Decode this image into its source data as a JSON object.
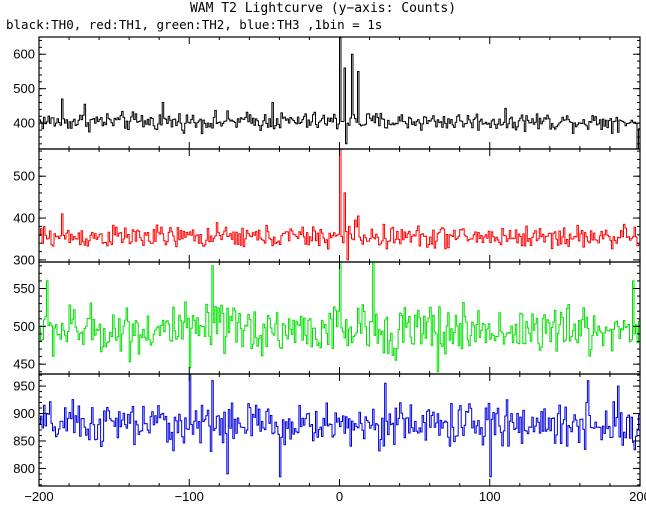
{
  "chart_data": {
    "type": "line",
    "title": "WAM T2 Lightcurve (y−axis: Counts)",
    "subtitle": "black:TH0, red:TH1, green:TH2, blue:TH3 ,1bin = 1s",
    "x_range": [
      -200,
      200
    ],
    "x_ticks": [
      -200,
      -100,
      0,
      100,
      200
    ],
    "x_tick_labels": [
      "−200",
      "−100",
      "0",
      "100",
      "200"
    ],
    "bin_seconds": 1,
    "panels": [
      {
        "name": "TH0",
        "color": "#000000",
        "ylim": [
          325,
          650
        ],
        "yticks": [
          400,
          500,
          600
        ],
        "baseline": 405,
        "noise_amplitude": 20,
        "peaks": [
          [
            -185,
            470
          ],
          [
            -170,
            455
          ],
          [
            -118,
            460
          ],
          [
            -45,
            460
          ],
          [
            0,
            648
          ],
          [
            3,
            560
          ],
          [
            5,
            400
          ],
          [
            8,
            600
          ],
          [
            12,
            550
          ]
        ],
        "dips": [
          [
            4,
            340
          ],
          [
            198,
            320
          ]
        ]
      },
      {
        "name": "TH1",
        "color": "#ff0000",
        "ylim": [
          295,
          565
        ],
        "yticks": [
          300,
          400,
          500
        ],
        "baseline": 355,
        "noise_amplitude": 20,
        "peaks": [
          [
            -185,
            410
          ],
          [
            0,
            565
          ],
          [
            3,
            460
          ],
          [
            6,
            380
          ],
          [
            10,
            395
          ],
          [
            12,
            405
          ]
        ],
        "dips": [
          [
            5,
            300
          ]
        ]
      },
      {
        "name": "TH2",
        "color": "#00e000",
        "ylim": [
          437,
          585
        ],
        "yticks": [
          450,
          500,
          550
        ],
        "baseline": 495,
        "noise_amplitude": 25,
        "peaks": [
          [
            -195,
            560
          ],
          [
            -85,
            580
          ],
          [
            0,
            585
          ],
          [
            22,
            585
          ],
          [
            195,
            560
          ]
        ],
        "dips": [
          [
            -100,
            445
          ],
          [
            65,
            440
          ]
        ]
      },
      {
        "name": "TH3",
        "color": "#0000dd",
        "ylim": [
          768,
          972
        ],
        "yticks": [
          800,
          850,
          900,
          950
        ],
        "baseline": 880,
        "noise_amplitude": 30,
        "peaks": [
          [
            -100,
            972
          ],
          [
            -85,
            960
          ],
          [
            30,
            955
          ],
          [
            165,
            960
          ],
          [
            185,
            950
          ]
        ],
        "dips": [
          [
            -75,
            790
          ],
          [
            -40,
            785
          ],
          [
            100,
            785
          ]
        ]
      }
    ]
  }
}
